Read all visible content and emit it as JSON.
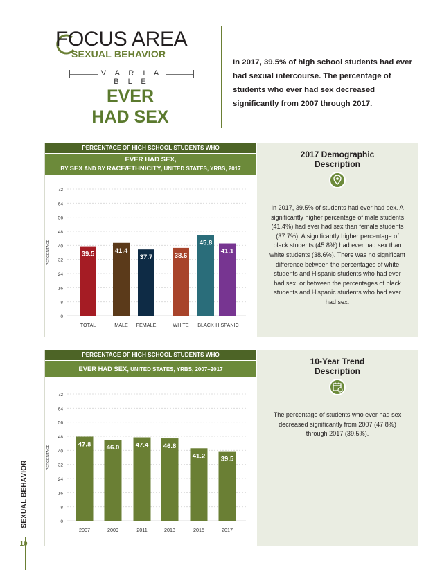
{
  "header": {
    "focus_area": "FOCUS AREA",
    "category": "SEXUAL BEHAVIOR",
    "variable_label": "V A R I A B L E",
    "title_line1": "EVER",
    "title_line2": "HAD SEX",
    "intro": "In 2017, 39.5% of high school students had ever had sexual intercourse. The percentage of students who ever had sex decreased significantly from 2007 through 2017."
  },
  "sidebar": {
    "section": "SEXUAL BEHAVIOR",
    "page_number": "10"
  },
  "chart1_header": {
    "top": "PERCENTAGE OF HIGH SCHOOL STUDENTS WHO",
    "line1": "EVER HAD SEX,",
    "line2_a": "BY ",
    "line2_sex": "SEX",
    "line2_b": " AND BY ",
    "line2_race": "RACE/ETHNICITY,",
    "line2_c": " UNITED STATES, YRBS, 2017"
  },
  "chart2_header": {
    "top": "PERCENTAGE OF HIGH SCHOOL STUDENTS WHO",
    "line1_bold": "EVER HAD SEX,",
    "line1_rest": " UNITED STATES, YRBS, 2007–2017"
  },
  "desc1": {
    "title_line1": "2017 Demographic",
    "title_line2": "Description",
    "icon": "map-pin-icon",
    "body": "In 2017, 39.5% of students had ever had sex. A significantly higher percentage of male students (41.4%) had ever had sex than female students (37.7%). A significantly higher percentage of black students (45.8%) had ever had sex than white students (38.6%). There was no significant difference between the percentages of white students and Hispanic students who had ever had sex, or between the percentages of black students and Hispanic students who had ever had sex."
  },
  "desc2": {
    "title_line1": "10-Year Trend",
    "title_line2": "Description",
    "icon": "calendar-clock-icon",
    "body": "The percentage of students who ever had sex decreased significantly from 2007 (47.8%) through 2017 (39.5%)."
  },
  "chart_data": [
    {
      "type": "bar",
      "ylabel": "PERCENTAGE",
      "ylim": [
        0,
        72
      ],
      "yticks": [
        0,
        8,
        16,
        24,
        32,
        40,
        48,
        56,
        64,
        72
      ],
      "grid": true,
      "categories": [
        "TOTAL",
        "MALE",
        "FEMALE",
        "WHITE",
        "BLACK",
        "HISPANIC"
      ],
      "values": [
        39.5,
        41.4,
        37.7,
        38.6,
        45.8,
        41.1
      ],
      "value_labels": [
        "39.5",
        "41.4",
        "37.7",
        "38.6",
        "45.8",
        "41.1"
      ],
      "colors": [
        "#a51c24",
        "#5b3a1a",
        "#0e2b45",
        "#a8442b",
        "#2a6d7a",
        "#773591"
      ],
      "groups": [
        {
          "label": "SEX",
          "categories": [
            "MALE",
            "FEMALE"
          ]
        },
        {
          "label": "RACE/ETHNICITY",
          "categories": [
            "WHITE",
            "BLACK",
            "HISPANIC"
          ]
        }
      ]
    },
    {
      "type": "bar",
      "ylabel": "PERCENTAGE",
      "ylim": [
        0,
        72
      ],
      "yticks": [
        0,
        8,
        16,
        24,
        32,
        40,
        48,
        56,
        64,
        72
      ],
      "grid": true,
      "categories": [
        "2007",
        "2009",
        "2011",
        "2013",
        "2015",
        "2017"
      ],
      "values": [
        47.8,
        46.0,
        47.4,
        46.8,
        41.2,
        39.5
      ],
      "value_labels": [
        "47.8",
        "46.0",
        "47.4",
        "46.8",
        "41.2",
        "39.5"
      ],
      "color": "#6a7f34"
    }
  ]
}
